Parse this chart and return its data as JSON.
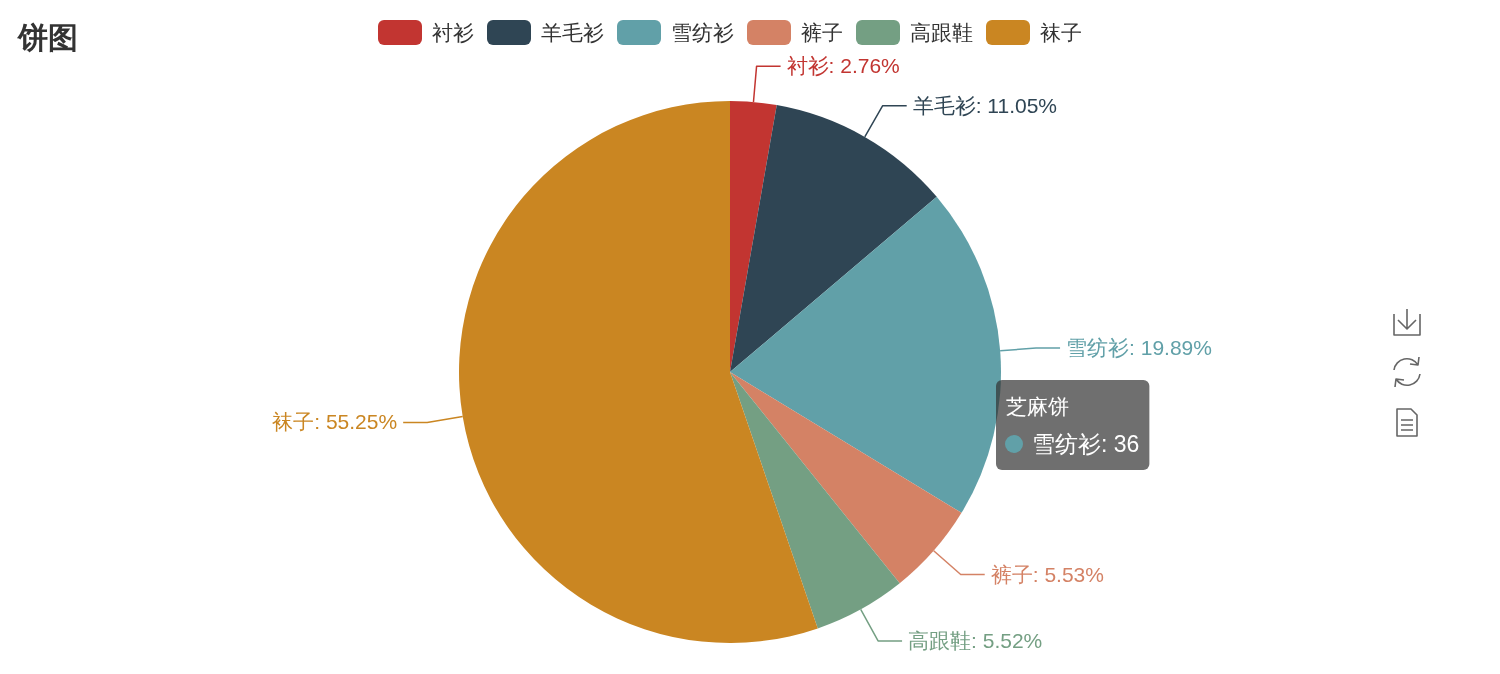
{
  "chart_data": {
    "type": "pie",
    "title": "饼图",
    "categories": [
      "衬衫",
      "羊毛衫",
      "雪纺衫",
      "裤子",
      "高跟鞋",
      "袜子"
    ],
    "values": [
      2.76,
      11.05,
      19.89,
      5.53,
      5.52,
      55.25
    ],
    "colors": [
      "#c23531",
      "#2f4554",
      "#61a0a8",
      "#d48265",
      "#749f83",
      "#ca8622"
    ],
    "value_labels": [
      "衬衫: 2.76%",
      "羊毛衫: 11.05%",
      "雪纺衫: 19.89%",
      "裤子: 5.53%",
      "高跟鞋: 5.52%",
      "袜子: 55.25%"
    ],
    "legend": "top",
    "annotations": [
      "芝麻饼",
      "雪纺衫: 36"
    ]
  }
}
